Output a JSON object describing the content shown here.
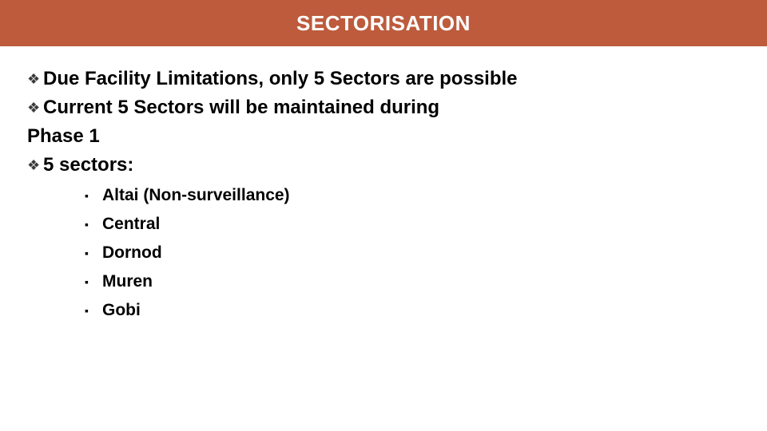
{
  "header": {
    "background_color": "#bd5b3c",
    "title": "SECTORISATION",
    "title_color": "#ffffff",
    "title_fontsize": 26
  },
  "bullets": {
    "icon": "❖",
    "icon_color": "#3b3b3b",
    "items": [
      "Due Facility Limitations, only 5 Sectors are possible",
      "Current 5 Sectors will be maintained during",
      "5 sectors:"
    ],
    "continuation_line": "Phase 1"
  },
  "sub_bullets": {
    "icon": "▪",
    "icon_color": "#000000",
    "items": [
      "Altai (Non-surveillance)",
      "Central",
      "Dornod",
      "Muren",
      "Gobi"
    ]
  }
}
